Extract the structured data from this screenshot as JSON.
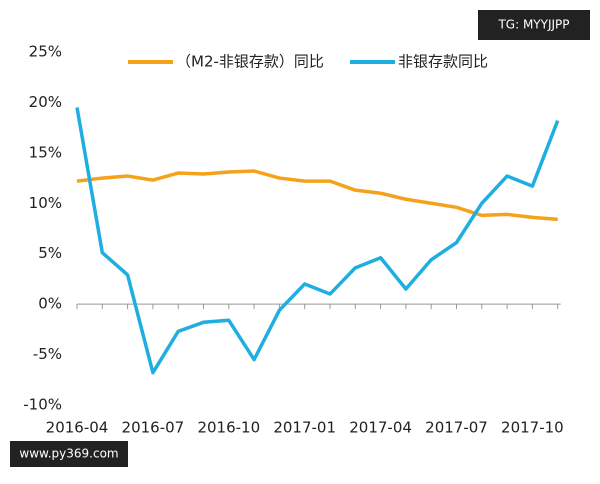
{
  "chart_data": {
    "type": "line",
    "categories": [
      "2016-04",
      null,
      null,
      "2016-07",
      null,
      null,
      "2016-10",
      null,
      null,
      "2017-01",
      null,
      null,
      "2017-04",
      null,
      null,
      "2017-07",
      null,
      null,
      "2017-10",
      null
    ],
    "series": [
      {
        "name": "（M2-非银存款）同比",
        "color": "#f5a21b",
        "values": [
          12.2,
          12.5,
          12.7,
          12.3,
          13.0,
          12.9,
          13.1,
          13.2,
          12.5,
          12.2,
          12.2,
          11.3,
          11.0,
          10.4,
          10.0,
          9.6,
          8.8,
          8.9,
          8.6,
          8.4
        ]
      },
      {
        "name": "非银存款同比",
        "color": "#1eaee0",
        "values": [
          19.5,
          5.1,
          2.9,
          -6.8,
          -2.7,
          -1.8,
          -1.6,
          -5.5,
          -0.6,
          2.0,
          1.0,
          3.6,
          4.6,
          1.5,
          4.4,
          6.1,
          10.0,
          12.7,
          11.7,
          18.2
        ]
      }
    ],
    "ylim": [
      -10,
      25
    ],
    "yticks": [
      {
        "value": -10,
        "label": "-10%"
      },
      {
        "value": -5,
        "label": "-5%"
      },
      {
        "value": 0,
        "label": "0%"
      },
      {
        "value": 5,
        "label": "5%"
      },
      {
        "value": 10,
        "label": "10%"
      },
      {
        "value": 15,
        "label": "15%"
      },
      {
        "value": 20,
        "label": "20%"
      },
      {
        "value": 25,
        "label": "25%"
      }
    ],
    "legend": "top",
    "watermarks": [
      "TG: MYYJJPP",
      "www.py369.com"
    ]
  }
}
